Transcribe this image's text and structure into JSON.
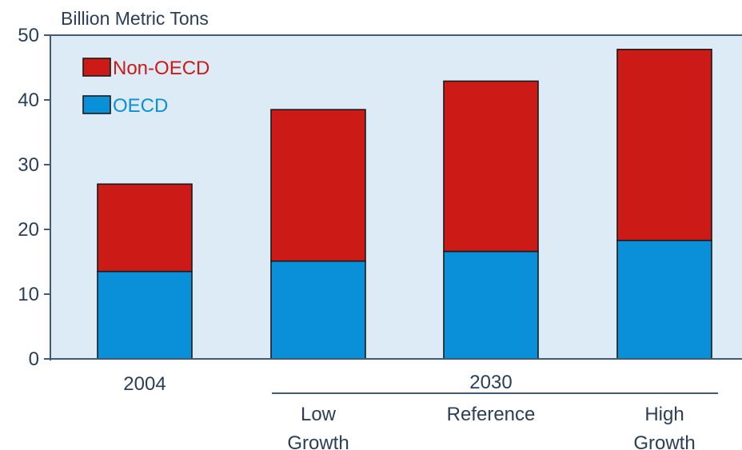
{
  "chart_data": {
    "type": "bar",
    "stacked": true,
    "ylabel": "Billion Metric Tons",
    "ylim": [
      0,
      50
    ],
    "yticks": [
      "0",
      "10",
      "20",
      "30",
      "40",
      "50"
    ],
    "categories": [
      "2004",
      "Low Growth",
      "Reference",
      "High Growth"
    ],
    "category_lines": [
      [
        "2004"
      ],
      [
        "Low",
        "Growth"
      ],
      [
        "Reference"
      ],
      [
        "High",
        "Growth"
      ]
    ],
    "group_label": "2030",
    "series": [
      {
        "name": "OECD",
        "color": "#0a8fd9",
        "values": [
          13.5,
          15.1,
          16.6,
          18.3
        ]
      },
      {
        "name": "Non-OECD",
        "color": "#cc1a16",
        "values": [
          13.5,
          23.4,
          26.3,
          29.5
        ]
      }
    ],
    "legend": {
      "placement": "top-left",
      "order": [
        "Non-OECD",
        "OECD"
      ]
    },
    "legend_text_colors": {
      "Non-OECD": "#cc1a16",
      "OECD": "#0a8fd9"
    },
    "grid": false,
    "plot_background": "#dcebf5"
  }
}
